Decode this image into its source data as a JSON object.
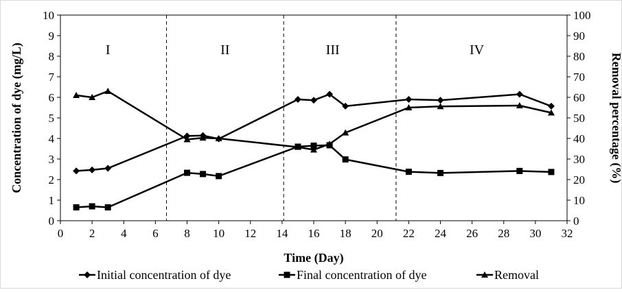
{
  "chart_data": {
    "type": "line",
    "xlabel": "Time (Day)",
    "ylabel": "Concentration of dye (mg/L)",
    "y2label": "Removal percentage (%)",
    "xlim": [
      0,
      32
    ],
    "ylim": [
      0,
      10
    ],
    "y2lim": [
      0,
      100
    ],
    "xticks": [
      "0",
      "2",
      "4",
      "6",
      "8",
      "10",
      "12",
      "14",
      "16",
      "18",
      "20",
      "22",
      "24",
      "26",
      "28",
      "30",
      "32"
    ],
    "yticks": [
      "0",
      "1",
      "2",
      "3",
      "4",
      "5",
      "6",
      "7",
      "8",
      "9",
      "10"
    ],
    "y2ticks": [
      "0",
      "10",
      "20",
      "30",
      "40",
      "50",
      "60",
      "70",
      "80",
      "90",
      "100"
    ],
    "phase_dividers": [
      6.7,
      14.1,
      21.2
    ],
    "phases": [
      {
        "label": "I",
        "x": 3.0
      },
      {
        "label": "II",
        "x": 10.4
      },
      {
        "label": "III",
        "x": 17.2
      },
      {
        "label": "IV",
        "x": 26.3
      }
    ],
    "phase_label_y": 8.1,
    "legend_position": "bottom",
    "series": [
      {
        "name": "Initial concentration of dye",
        "marker": "diamond",
        "axis": "left",
        "color": "#000000",
        "x": [
          1,
          2,
          3,
          8,
          9,
          10,
          15,
          16,
          17,
          18,
          22,
          24,
          29,
          31
        ],
        "values": [
          2.42,
          2.47,
          2.55,
          4.12,
          4.14,
          3.98,
          5.9,
          5.86,
          6.15,
          5.57,
          5.9,
          5.86,
          6.15,
          5.57
        ]
      },
      {
        "name": "Final concentration of dye",
        "marker": "square",
        "axis": "left",
        "color": "#000000",
        "x": [
          1,
          2,
          3,
          8,
          9,
          10,
          15,
          16,
          17,
          18,
          22,
          24,
          29,
          31
        ],
        "values": [
          0.65,
          0.7,
          0.65,
          2.33,
          2.27,
          2.17,
          3.6,
          3.65,
          3.67,
          2.98,
          2.38,
          2.32,
          2.42,
          2.37
        ]
      },
      {
        "name": "Removal",
        "marker": "triangle",
        "axis": "right",
        "color": "#000000",
        "x": [
          1,
          2,
          3,
          8,
          9,
          10,
          15,
          16,
          17,
          18,
          22,
          24,
          29,
          31
        ],
        "values": [
          61,
          60,
          63,
          39.5,
          40.3,
          40,
          35.8,
          34.5,
          37.3,
          42.8,
          55,
          55.6,
          56,
          52.5
        ]
      }
    ]
  }
}
